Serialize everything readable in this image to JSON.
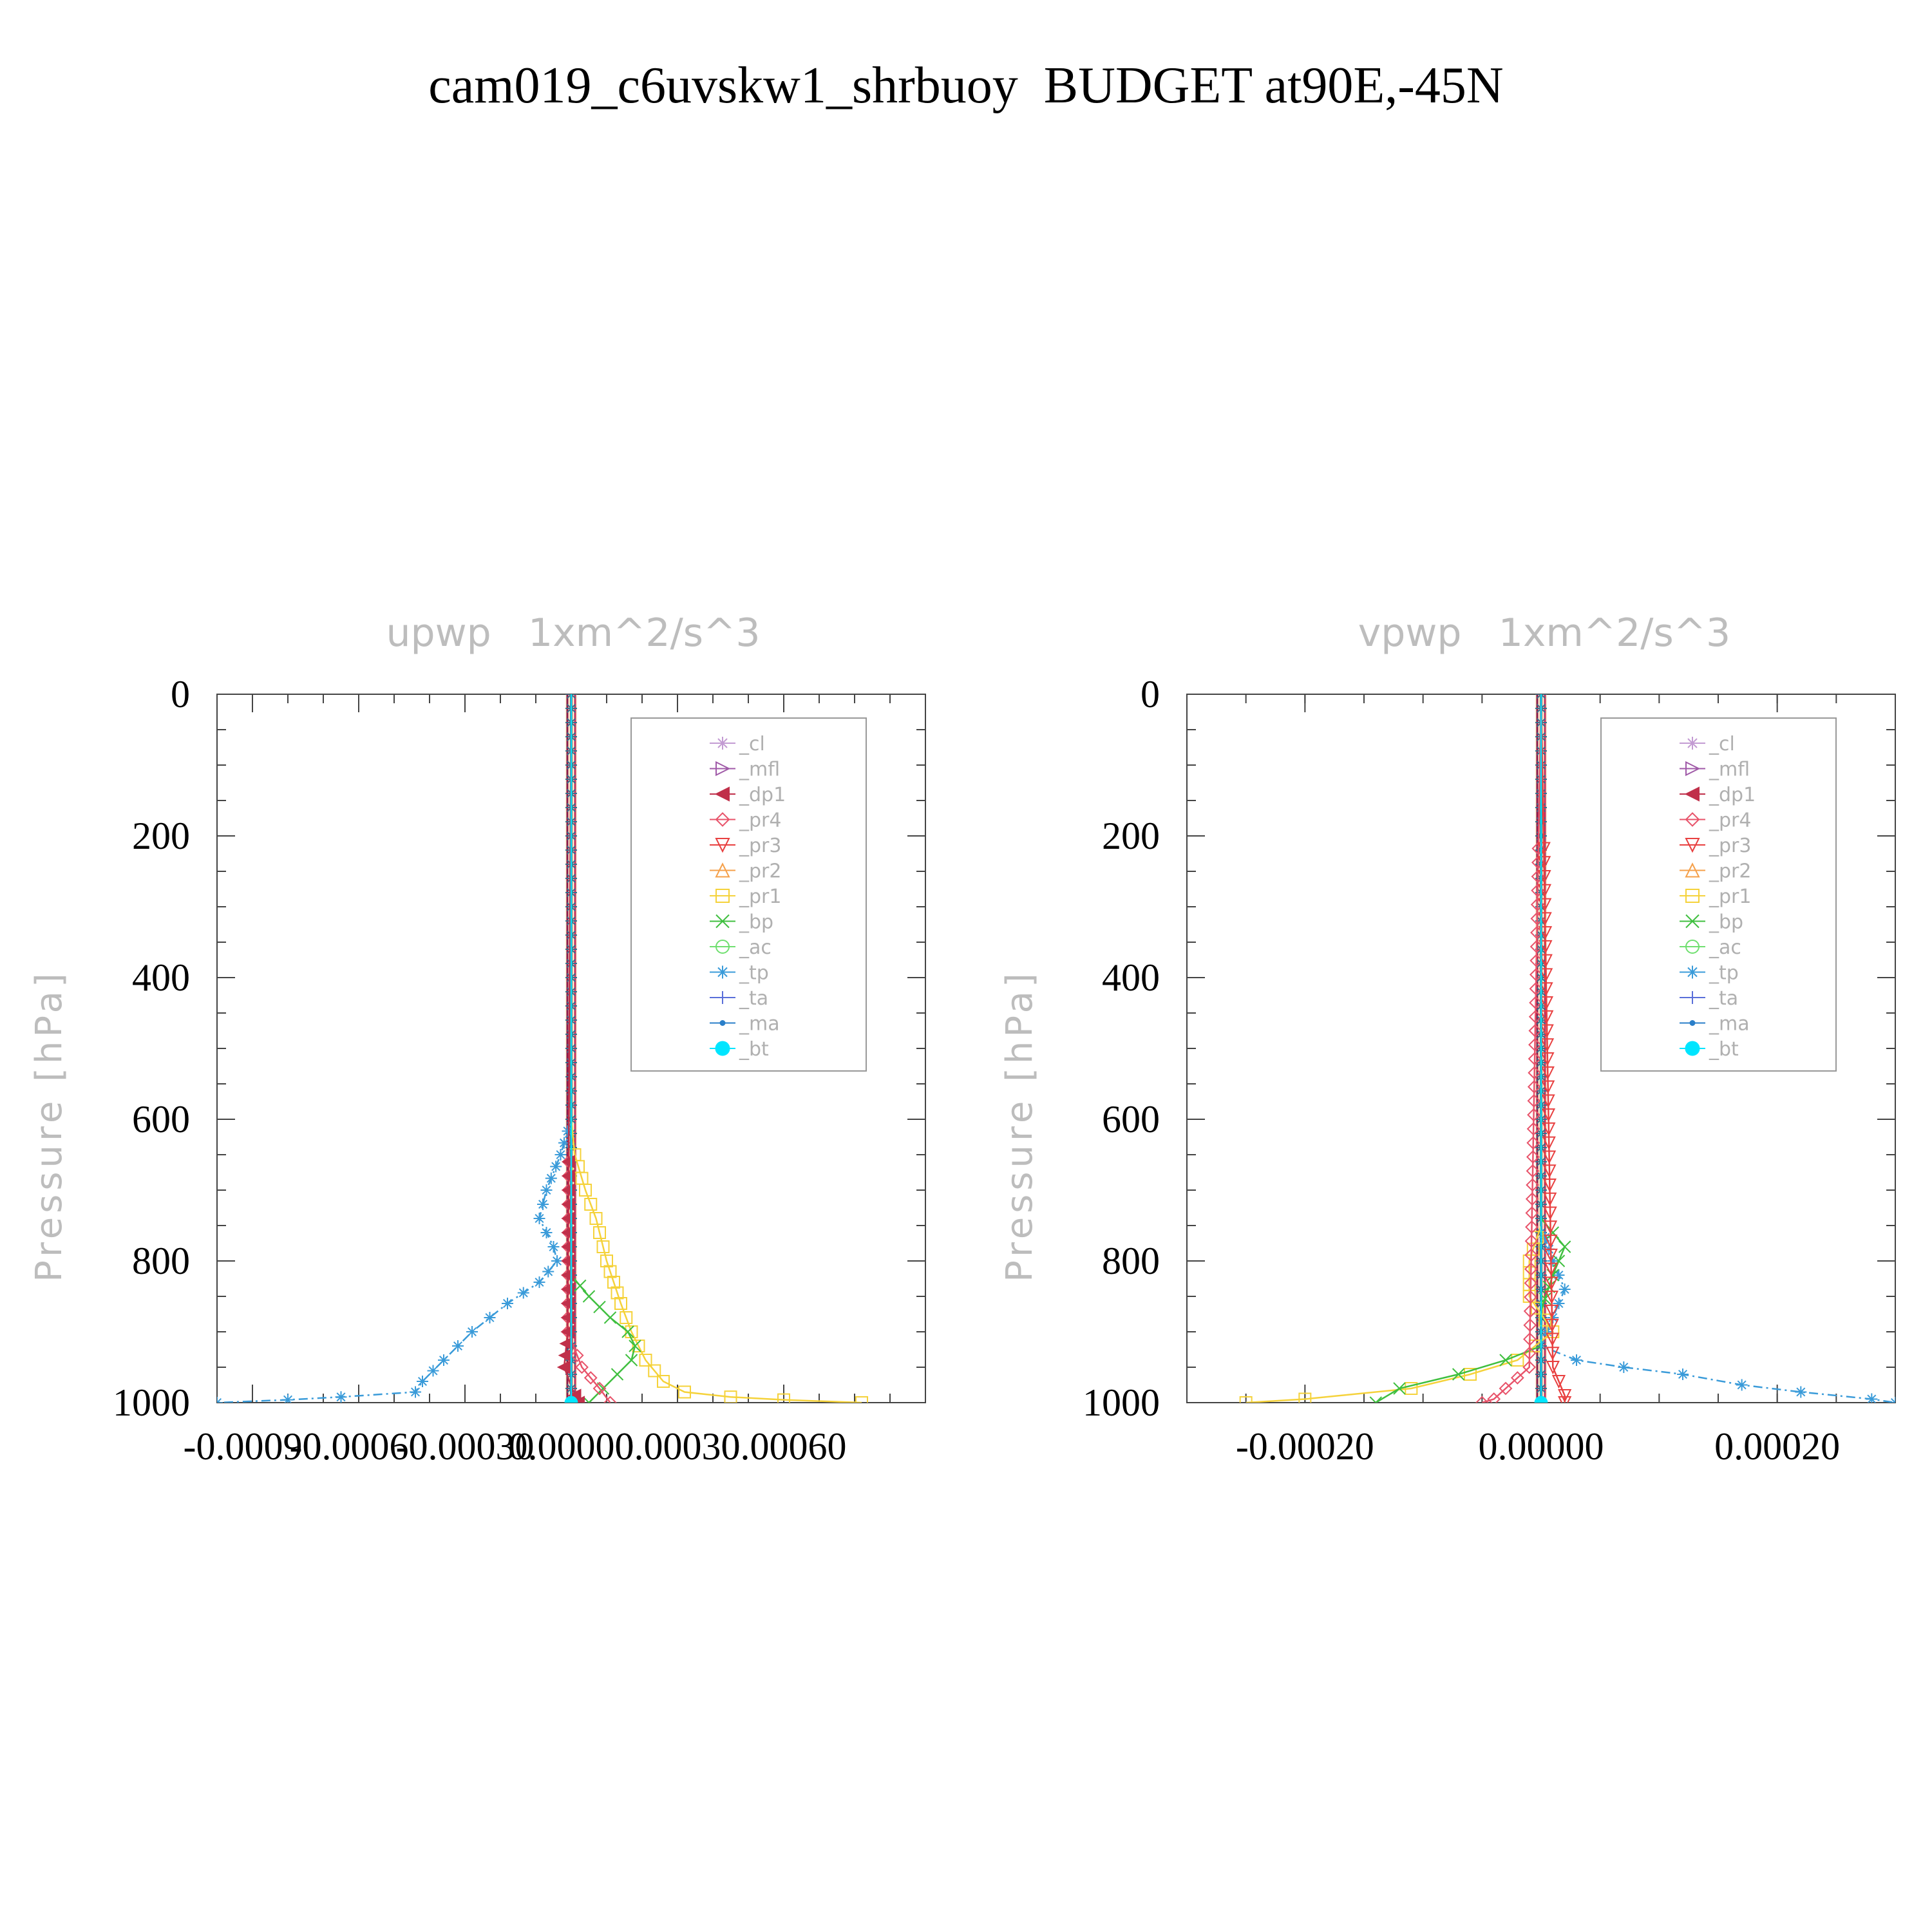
{
  "title": "cam019_c6uvskw1_shrbuoy  BUDGET at90E,-45N",
  "colors": {
    "axis": "#444444",
    "ylabel": "#bdbdbd",
    "legend_text": "#b0b0b0"
  },
  "legend_entries": [
    {
      "name": "_cl",
      "color": "#c39bd3",
      "marker": "star"
    },
    {
      "name": "_mfl",
      "color": "#a05aa8",
      "marker": "tri-right"
    },
    {
      "name": "_dp1",
      "color": "#c0304a",
      "marker": "tri-left"
    },
    {
      "name": "_pr4",
      "color": "#e8536a",
      "marker": "diamond"
    },
    {
      "name": "_pr3",
      "color": "#e84040",
      "marker": "tri-down"
    },
    {
      "name": "_pr2",
      "color": "#f5a04a",
      "marker": "tri-up"
    },
    {
      "name": "_pr1",
      "color": "#f5d23a",
      "marker": "square"
    },
    {
      "name": "_bp",
      "color": "#3fbf3f",
      "marker": "x"
    },
    {
      "name": "_ac",
      "color": "#6fdf6f",
      "marker": "circle"
    },
    {
      "name": "_tp",
      "color": "#3a9bd9",
      "marker": "asterisk"
    },
    {
      "name": "_ta",
      "color": "#5a6fd9",
      "marker": "plus"
    },
    {
      "name": "_ma",
      "color": "#2a7fc9",
      "marker": "dot"
    },
    {
      "name": "_bt",
      "color": "#00e5ff",
      "marker": "filled-circle"
    }
  ],
  "chart_data": [
    {
      "type": "line",
      "title": "upwp   1xm^2/s^3",
      "ylabel": "Pressure [hPa]",
      "xlabel": "",
      "xlim": [
        -0.001,
        0.001
      ],
      "ylim": [
        1000,
        0
      ],
      "x_tick_labels": [
        "-0.00090",
        "-0.00060",
        "-0.00030",
        "0.00000",
        "0.00030",
        "0.00060"
      ],
      "y_tick_labels": [
        "0",
        "200",
        "400",
        "600",
        "800",
        "1000"
      ],
      "legend_position": "top-right",
      "grid": false,
      "series": [
        {
          "name": "_tp",
          "y": [
            0,
            600,
            650,
            700,
            740,
            780,
            800,
            830,
            860,
            900,
            940,
            970,
            985,
            992,
            996,
            1000
          ],
          "x": [
            0,
            0,
            -3e-05,
            -7e-05,
            -9e-05,
            -5e-05,
            -4e-05,
            -9e-05,
            -0.00018,
            -0.00028,
            -0.00036,
            -0.00042,
            -0.00044,
            -0.00065,
            -0.0008,
            -0.001
          ]
        },
        {
          "name": "_pr1",
          "y": [
            0,
            600,
            650,
            700,
            740,
            780,
            800,
            830,
            860,
            900,
            940,
            970,
            985,
            992,
            996,
            1000
          ],
          "x": [
            0,
            0,
            1e-05,
            4e-05,
            7e-05,
            9e-05,
            0.0001,
            0.00012,
            0.00014,
            0.00017,
            0.00021,
            0.00026,
            0.00032,
            0.00045,
            0.0006,
            0.00082
          ]
        },
        {
          "name": "_bp",
          "y": [
            0,
            820,
            850,
            880,
            900,
            920,
            940,
            960,
            980,
            1000
          ],
          "x": [
            0,
            0,
            5e-05,
            0.00011,
            0.00016,
            0.00018,
            0.00017,
            0.00013,
            9e-05,
            5e-05
          ]
        },
        {
          "name": "_pr4",
          "y": [
            0,
            900,
            950,
            980,
            1000
          ],
          "x": [
            0,
            -1e-05,
            3e-05,
            8e-05,
            0.00011
          ]
        },
        {
          "name": "_dp1",
          "y": [
            0,
            900,
            950,
            990,
            1000
          ],
          "x": [
            0,
            -1e-05,
            -2e-05,
            1e-05,
            2e-05
          ]
        },
        {
          "name": "_bt",
          "y": [
            0,
            1000
          ],
          "x": [
            0,
            0
          ]
        }
      ]
    },
    {
      "type": "line",
      "title": "vpwp   1xm^2/s^3",
      "ylabel": "Pressure [hPa]",
      "xlabel": "",
      "xlim": [
        -0.0003,
        0.0003
      ],
      "ylim": [
        1000,
        0
      ],
      "x_tick_labels": [
        "-0.00020",
        "0.00000",
        "0.00020"
      ],
      "y_tick_labels": [
        "0",
        "200",
        "400",
        "600",
        "800",
        "1000"
      ],
      "legend_position": "top-right",
      "grid": false,
      "series": [
        {
          "name": "_tp",
          "y": [
            0,
            750,
            800,
            840,
            880,
            920,
            940,
            950,
            960,
            975,
            985,
            995,
            1000
          ],
          "x": [
            0,
            0.0,
            1e-05,
            2e-05,
            1e-05,
            0.0,
            3e-05,
            7e-05,
            0.00012,
            0.00017,
            0.00022,
            0.00028,
            0.0003
          ]
        },
        {
          "name": "_pr1",
          "y": [
            0,
            750,
            800,
            850,
            900,
            940,
            960,
            980,
            995,
            1000
          ],
          "x": [
            0,
            0.0,
            -1e-05,
            -1e-05,
            1e-05,
            -2e-05,
            -6e-05,
            -0.00011,
            -0.0002,
            -0.00025
          ]
        },
        {
          "name": "_bp",
          "y": [
            0,
            740,
            780,
            820,
            870,
            920,
            940,
            960,
            980,
            1000
          ],
          "x": [
            0,
            0.0,
            2e-05,
            1e-05,
            0.0,
            0.0,
            -3e-05,
            -7e-05,
            -0.00012,
            -0.00014
          ]
        },
        {
          "name": "_pr4",
          "y": [
            0,
            950,
            980,
            995,
            1000
          ],
          "x": [
            0,
            -1e-05,
            -3e-05,
            -4e-05,
            -5e-05
          ]
        },
        {
          "name": "_pr3",
          "y": [
            0,
            950,
            990,
            1000
          ],
          "x": [
            0,
            1e-05,
            2e-05,
            2e-05
          ]
        },
        {
          "name": "_bt",
          "y": [
            0,
            1000
          ],
          "x": [
            0,
            0
          ]
        }
      ]
    }
  ]
}
